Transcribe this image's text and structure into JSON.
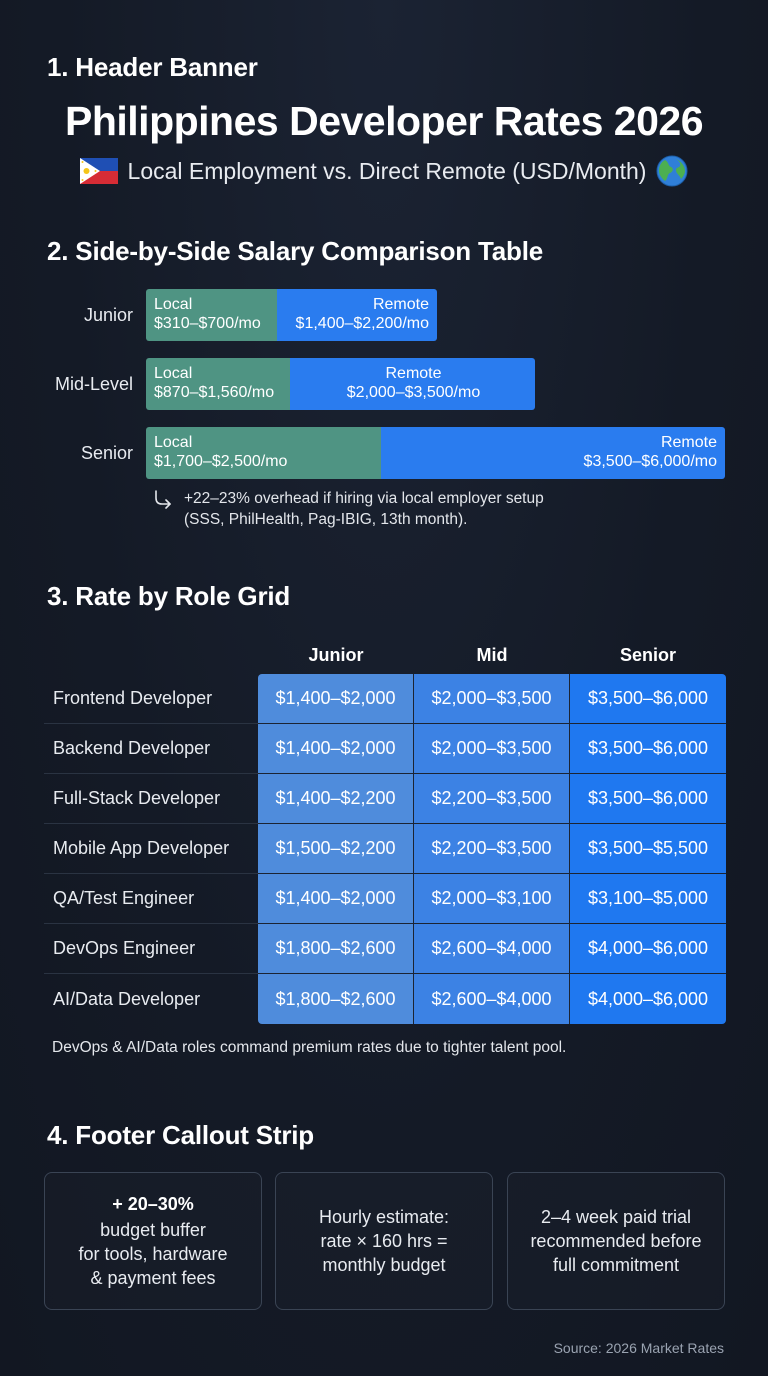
{
  "sections": {
    "header": "1. Header Banner",
    "comparison": "2. Side-by-Side Salary Comparison Table",
    "grid": "3. Rate by Role Grid",
    "footer": "4. Footer Callout Strip"
  },
  "header": {
    "title": "Philippines Developer Rates 2026",
    "subtitle": "Local Employment vs. Direct Remote (USD/Month)",
    "left_icon": "philippines-flag-icon",
    "right_icon": "globe-icon"
  },
  "comparison": {
    "rows": [
      {
        "level": "Junior",
        "local_label": "Local",
        "local_range": "$310–$700/mo",
        "remote_label": "Remote",
        "remote_range": "$1,400–$2,200/mo"
      },
      {
        "level": "Mid-Level",
        "local_label": "Local",
        "local_range": "$870–$1,560/mo",
        "remote_label": "Remote",
        "remote_range": "$2,000–$3,500/mo"
      },
      {
        "level": "Senior",
        "local_label": "Local",
        "local_range": "$1,700–$2,500/mo",
        "remote_label": "Remote",
        "remote_range": "$3,500–$6,000/mo"
      }
    ],
    "note_line1": "+22–23% overhead if hiring via local employer setup",
    "note_line2": "(SSS, PhilHealth, Pag-IBIG, 13th month).",
    "colors": {
      "local": "#4f9483",
      "remote": "#2a7cef"
    }
  },
  "grid": {
    "columns": [
      "Junior",
      "Mid",
      "Senior"
    ],
    "rows": [
      {
        "role": "Frontend Developer",
        "junior": "$1,400–$2,000",
        "mid": "$2,000–$3,500",
        "senior": "$3,500–$6,000"
      },
      {
        "role": "Backend Developer",
        "junior": "$1,400–$2,000",
        "mid": "$2,000–$3,500",
        "senior": "$3,500–$6,000"
      },
      {
        "role": "Full-Stack Developer",
        "junior": "$1,400–$2,200",
        "mid": "$2,200–$3,500",
        "senior": "$3,500–$6,000"
      },
      {
        "role": "Mobile App Developer",
        "junior": "$1,500–$2,200",
        "mid": "$2,200–$3,500",
        "senior": "$3,500–$5,500"
      },
      {
        "role": "QA/Test Engineer",
        "junior": "$1,400–$2,000",
        "mid": "$2,000–$3,100",
        "senior": "$3,100–$5,000"
      },
      {
        "role": "DevOps Engineer",
        "junior": "$1,800–$2,600",
        "mid": "$2,600–$4,000",
        "senior": "$4,000–$6,000"
      },
      {
        "role": "AI/Data Developer",
        "junior": "$1,800–$2,600",
        "mid": "$2,600–$4,000",
        "senior": "$4,000–$6,000"
      }
    ],
    "note": "DevOps & AI/Data roles command premium rates due to tighter talent pool."
  },
  "footer": {
    "cards": [
      {
        "highlight": "+ 20–30%",
        "lines": [
          "budget buffer",
          "for tools, hardware",
          "& payment fees"
        ]
      },
      {
        "highlight": "",
        "lines": [
          "Hourly estimate:",
          "rate × 160 hrs =",
          "monthly budget"
        ]
      },
      {
        "highlight": "",
        "lines": [
          "2–4 week paid trial",
          "recommended before",
          "full commitment"
        ]
      }
    ],
    "source": "Source: 2026 Market Rates"
  }
}
